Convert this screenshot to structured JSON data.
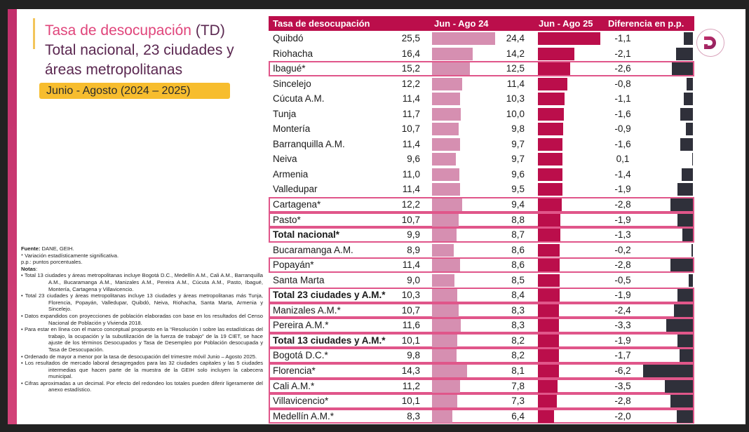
{
  "title": {
    "accent": "Tasa de desocupación",
    "abbrev": " (TD)",
    "line2": "Total nacional, 23 ciudades y",
    "line3": "áreas metropolitanas"
  },
  "period": "Junio - Agosto (2024 – 2025)",
  "logo_icon": "dane-d-logo-icon",
  "notes": {
    "source_label": "Fuente:",
    "source": " DANE, GEIH.",
    "asterisk": "* Variación estadísticamente significativa.",
    "pp": "p.p.: puntos porcentuales.",
    "notes_label": "Notas",
    "notes_colon": ":",
    "bullets": [
      "Total 13 ciudades y áreas metropolitanas incluye Bogotá D.C., Medellín A.M., Cali A.M., Barranquilla A.M., Bucaramanga A.M., Manizales A.M., Pereira A.M., Cúcuta A.M., Pasto, Ibagué, Montería, Cartagena y Villavicencio.",
      "Total 23 ciudades y áreas metropolitanas incluye 13 ciudades y áreas metropolitanas más Tunja, Florencia, Popayán, Valledupar, Quibdó, Neiva, Riohacha, Santa Marta, Armenia y Sincelejo.",
      "Datos expandidos con proyecciones de población elaboradas con base en los resultados del Censo Nacional de Población y Vivienda 2018.",
      "Para estar en línea con el marco conceptual propuesto en la “Resolución I sobre las estadísticas del trabajo, la ocupación y la subutilización de la fuerza de trabajo” de la 19 CIET, se hace ajuste de los términos Desocupados y Tasa de Desempleo por Población desocupada y Tasa de Desocupación.",
      "Ordenado de mayor a menor por la tasa de desocupación del trimestre móvil Junio – Agosto 2025.",
      "Los resultados de mercado laboral desagregados para las 32 ciudades capitales y las 5 ciudades intermedias que hacen parte de la muestra de la GEIH solo incluyen la cabecera municipal.",
      "Cifras aproximadas a un decimal. Por efecto del redondeo los totales pueden diferir ligeramente del anexo estadístico."
    ]
  },
  "colors": {
    "header": "#bb0e4b",
    "bar_2024": "#d68fb1",
    "bar_2025": "#bb0e4b",
    "bar_diff": "#2f303a",
    "highlight_border": "#e0568a",
    "period_badge": "#f7bd2e"
  },
  "chart_data": {
    "type": "table",
    "title": "Tasa de desocupación (TD) Total nacional, 23 ciudades y áreas metropolitanas",
    "subtitle": "Junio - Agosto (2024 – 2025)",
    "columns": [
      "Tasa de desocupación",
      "Jun - Ago 24",
      "Jun - Ago 25",
      "Diferencia en p.p."
    ],
    "rows": [
      {
        "name": "Quibdó",
        "v24": 25.5,
        "v25": 24.4,
        "diff": -1.1,
        "significant": false,
        "bold": false
      },
      {
        "name": "Riohacha",
        "v24": 16.4,
        "v25": 14.2,
        "diff": -2.1,
        "significant": false,
        "bold": false
      },
      {
        "name": "Ibagué*",
        "v24": 15.2,
        "v25": 12.5,
        "diff": -2.6,
        "significant": true,
        "bold": false
      },
      {
        "name": "Sincelejo",
        "v24": 12.2,
        "v25": 11.4,
        "diff": -0.8,
        "significant": false,
        "bold": false
      },
      {
        "name": "Cúcuta A.M.",
        "v24": 11.4,
        "v25": 10.3,
        "diff": -1.1,
        "significant": false,
        "bold": false
      },
      {
        "name": "Tunja",
        "v24": 11.7,
        "v25": 10.0,
        "diff": -1.6,
        "significant": false,
        "bold": false
      },
      {
        "name": "Montería",
        "v24": 10.7,
        "v25": 9.8,
        "diff": -0.9,
        "significant": false,
        "bold": false
      },
      {
        "name": "Barranquilla A.M.",
        "v24": 11.4,
        "v25": 9.7,
        "diff": -1.6,
        "significant": false,
        "bold": false
      },
      {
        "name": "Neiva",
        "v24": 9.6,
        "v25": 9.7,
        "diff": 0.1,
        "significant": false,
        "bold": false
      },
      {
        "name": "Armenia",
        "v24": 11.0,
        "v25": 9.6,
        "diff": -1.4,
        "significant": false,
        "bold": false
      },
      {
        "name": "Valledupar",
        "v24": 11.4,
        "v25": 9.5,
        "diff": -1.9,
        "significant": false,
        "bold": false
      },
      {
        "name": "Cartagena*",
        "v24": 12.2,
        "v25": 9.4,
        "diff": -2.8,
        "significant": true,
        "bold": false
      },
      {
        "name": "Pasto*",
        "v24": 10.7,
        "v25": 8.8,
        "diff": -1.9,
        "significant": true,
        "bold": false
      },
      {
        "name": "Total nacional*",
        "v24": 9.9,
        "v25": 8.7,
        "diff": -1.3,
        "significant": true,
        "bold": true
      },
      {
        "name": "Bucaramanga A.M.",
        "v24": 8.9,
        "v25": 8.6,
        "diff": -0.2,
        "significant": false,
        "bold": false
      },
      {
        "name": "Popayán*",
        "v24": 11.4,
        "v25": 8.6,
        "diff": -2.8,
        "significant": true,
        "bold": false
      },
      {
        "name": "Santa Marta",
        "v24": 9.0,
        "v25": 8.5,
        "diff": -0.5,
        "significant": false,
        "bold": false
      },
      {
        "name": "Total 23 ciudades y A.M.*",
        "v24": 10.3,
        "v25": 8.4,
        "diff": -1.9,
        "significant": true,
        "bold": true
      },
      {
        "name": "Manizales A.M.*",
        "v24": 10.7,
        "v25": 8.3,
        "diff": -2.4,
        "significant": true,
        "bold": false
      },
      {
        "name": "Pereira A.M.*",
        "v24": 11.6,
        "v25": 8.3,
        "diff": -3.3,
        "significant": true,
        "bold": false
      },
      {
        "name": "Total 13 ciudades y A.M.*",
        "v24": 10.1,
        "v25": 8.2,
        "diff": -1.9,
        "significant": true,
        "bold": true
      },
      {
        "name": "Bogotá D.C.*",
        "v24": 9.8,
        "v25": 8.2,
        "diff": -1.7,
        "significant": true,
        "bold": false
      },
      {
        "name": "Florencia*",
        "v24": 14.3,
        "v25": 8.1,
        "diff": -6.2,
        "significant": true,
        "bold": false
      },
      {
        "name": "Cali A.M.*",
        "v24": 11.2,
        "v25": 7.8,
        "diff": -3.5,
        "significant": true,
        "bold": false
      },
      {
        "name": "Villavicencio*",
        "v24": 10.1,
        "v25": 7.3,
        "diff": -2.8,
        "significant": true,
        "bold": false
      },
      {
        "name": "Medellín A.M.*",
        "v24": 8.3,
        "v25": 6.4,
        "diff": -2.0,
        "significant": true,
        "bold": false
      }
    ]
  }
}
